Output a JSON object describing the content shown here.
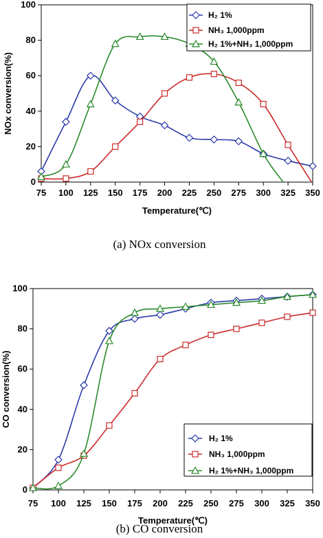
{
  "chart_data": [
    {
      "type": "line",
      "caption": "(a)  NOx  conversion",
      "xlabel": "Temperature(℃)",
      "ylabel": "NOx conversion(%)",
      "xlim": [
        75,
        350
      ],
      "ylim": [
        0,
        100
      ],
      "x_ticks": [
        "75",
        "100",
        "125",
        "150",
        "175",
        "200",
        "225",
        "250",
        "275",
        "300",
        "325",
        "350"
      ],
      "y_ticks": [
        "0",
        "20",
        "40",
        "60",
        "80",
        "100"
      ],
      "legend_position": "top-right",
      "series": [
        {
          "name": "H₂ 1%",
          "color": "#2a3aa8",
          "marker": "diamond",
          "x": [
            75,
            100,
            125,
            150,
            175,
            200,
            225,
            250,
            275,
            300,
            325,
            350
          ],
          "y": [
            6,
            34,
            60,
            46,
            37,
            32,
            25,
            24,
            23,
            16,
            12,
            9
          ]
        },
        {
          "name": "NH₃ 1,000ppm",
          "color": "#cc2a2a",
          "marker": "square",
          "x": [
            75,
            100,
            125,
            150,
            175,
            200,
            225,
            250,
            275,
            300,
            325,
            350
          ],
          "y": [
            2,
            2,
            6,
            20,
            34,
            50,
            59,
            61,
            56,
            44,
            21,
            -1
          ]
        },
        {
          "name": "H₂ 1%+NH₃ 1,000ppm",
          "color": "#2a8a2a",
          "marker": "triangle",
          "x": [
            75,
            100,
            125,
            150,
            175,
            200,
            225,
            250,
            275,
            300,
            320
          ],
          "y": [
            3,
            10,
            44,
            78,
            82,
            82,
            78,
            68,
            45,
            16,
            0
          ]
        }
      ]
    },
    {
      "type": "line",
      "caption": "(b)  CO  conversion",
      "xlabel": "Temperature(℃)",
      "ylabel": "CO conversion(%)",
      "xlim": [
        75,
        350
      ],
      "ylim": [
        0,
        100
      ],
      "x_ticks": [
        "75",
        "100",
        "125",
        "150",
        "175",
        "200",
        "225",
        "250",
        "275",
        "300",
        "325",
        "350"
      ],
      "y_ticks": [
        "0",
        "20",
        "40",
        "60",
        "80",
        "100"
      ],
      "legend_position": "bottom-right",
      "series": [
        {
          "name": "H₂ 1%",
          "color": "#2a3aa8",
          "marker": "diamond",
          "x": [
            75,
            100,
            125,
            150,
            175,
            200,
            225,
            250,
            275,
            300,
            325,
            350
          ],
          "y": [
            1,
            15,
            52,
            79,
            85,
            87,
            90,
            93,
            94,
            95,
            96,
            97
          ]
        },
        {
          "name": "NH₃ 1,000ppm",
          "color": "#cc2a2a",
          "marker": "square",
          "x": [
            75,
            100,
            125,
            150,
            175,
            200,
            225,
            250,
            275,
            300,
            325,
            350
          ],
          "y": [
            1,
            11,
            17,
            32,
            48,
            65,
            72,
            77,
            80,
            83,
            86,
            88
          ]
        },
        {
          "name": "H₂ 1%+NH₃ 1,000ppm",
          "color": "#2a8a2a",
          "marker": "triangle",
          "x": [
            75,
            100,
            125,
            150,
            175,
            200,
            225,
            250,
            275,
            300,
            325,
            350
          ],
          "y": [
            1,
            2,
            18,
            74,
            88,
            90,
            91,
            92,
            93,
            94,
            96,
            97
          ]
        }
      ]
    }
  ]
}
